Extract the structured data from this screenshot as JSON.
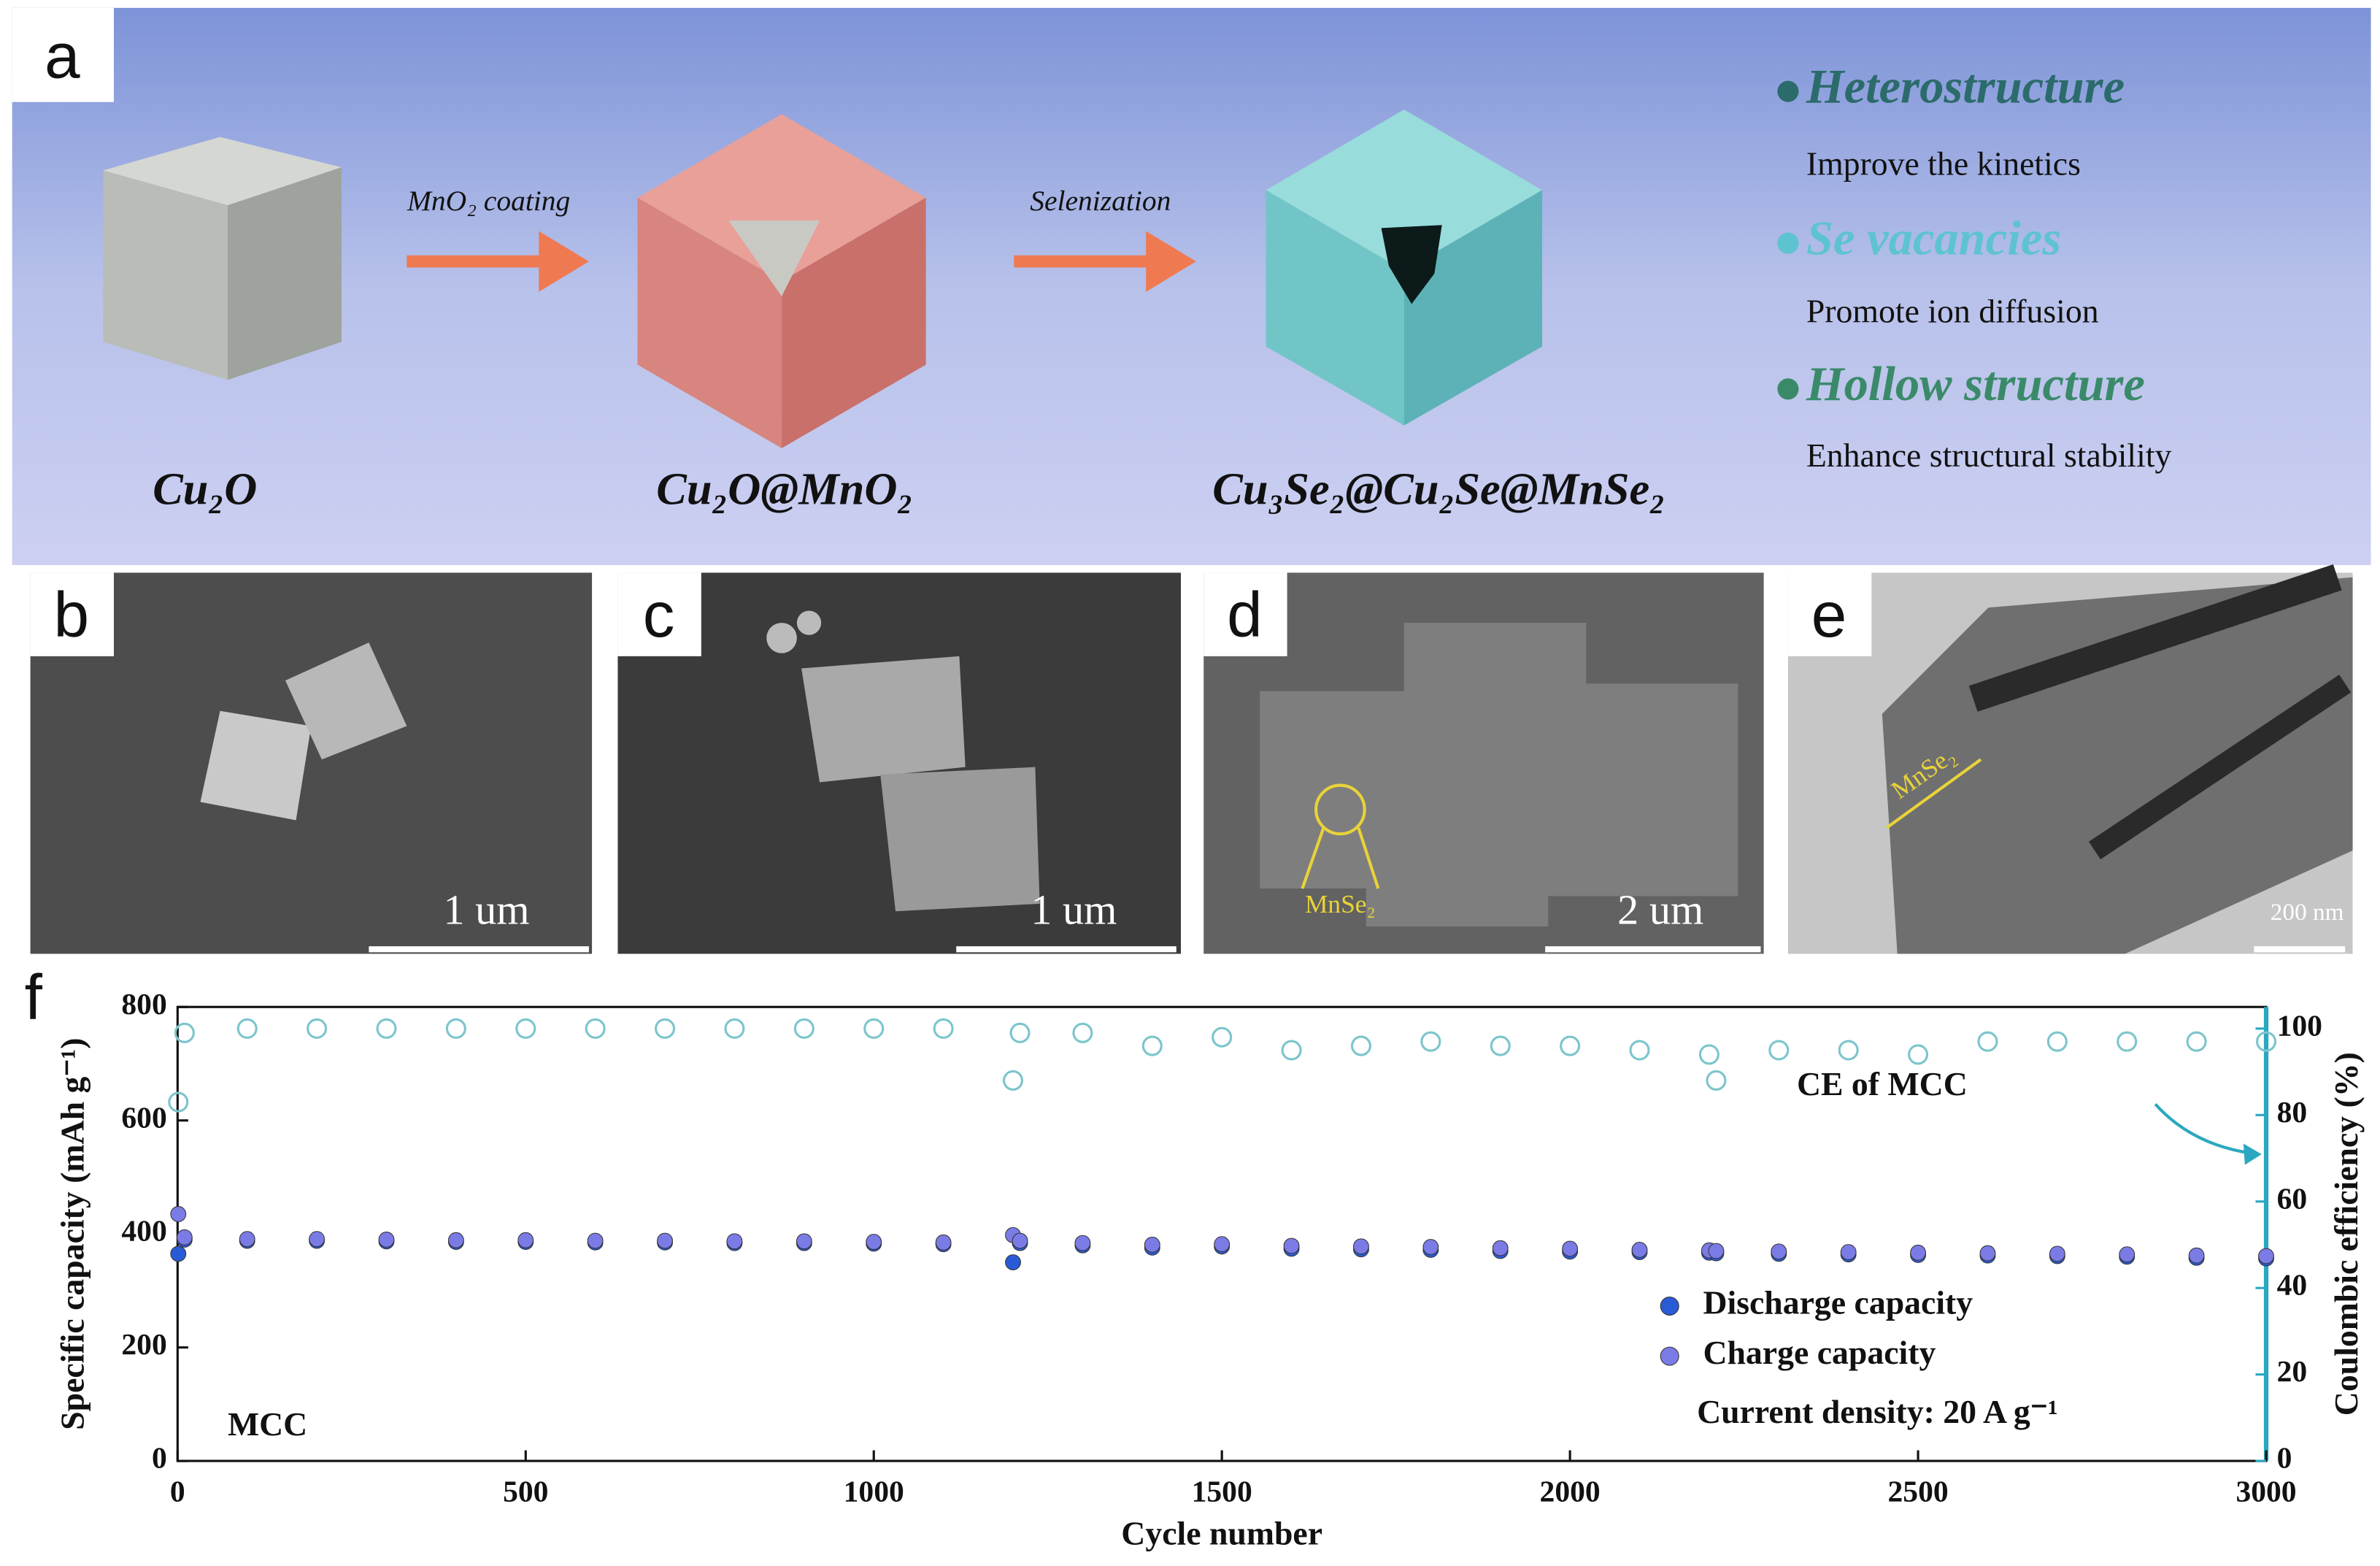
{
  "panel_a": {
    "label": "a",
    "steps": [
      "MnO₂ coating",
      "Selenization"
    ],
    "materials": [
      "Cu₂O",
      "Cu₂O@MnO₂",
      "Cu₃Se₂@Cu₂Se@MnSe₂"
    ],
    "features": [
      {
        "title": "Heterostructure",
        "text": "Improve the kinetics"
      },
      {
        "title": "Se vacancies",
        "text": "Promote ion diffusion"
      },
      {
        "title": "Hollow structure",
        "text": "Enhance structural stability"
      }
    ]
  },
  "panels_micro": [
    {
      "label": "b",
      "scale_bar": "1 um"
    },
    {
      "label": "c",
      "scale_bar": "1 um"
    },
    {
      "label": "d",
      "scale_bar": "2 um",
      "annotation": "MnSe₂"
    },
    {
      "label": "e",
      "scale_bar": "200 nm",
      "annotation": "MnSe₂"
    }
  ],
  "chart_data": {
    "type": "scatter",
    "panel_label": "f",
    "x_label": "Cycle number",
    "y_label": "Specific capacity (mAh g⁻¹)",
    "y2_label": "Coulombic efficiency (%)",
    "x": [
      1,
      10,
      100,
      200,
      300,
      400,
      500,
      600,
      700,
      800,
      900,
      1000,
      1100,
      1200,
      1210,
      1300,
      1400,
      1500,
      1600,
      1700,
      1800,
      1900,
      2000,
      2100,
      2200,
      2210,
      2300,
      2400,
      2500,
      2600,
      2700,
      2800,
      2900,
      3000
    ],
    "series": [
      {
        "name": "Discharge capacity",
        "color": "#2a5bd7",
        "values": [
          365,
          390,
          388,
          388,
          387,
          386,
          386,
          385,
          385,
          384,
          384,
          383,
          382,
          350,
          384,
          380,
          376,
          378,
          374,
          373,
          372,
          370,
          369,
          368,
          367,
          366,
          365,
          364,
          363,
          362,
          361,
          360,
          358,
          357
        ]
      },
      {
        "name": "Charge capacity",
        "color": "#7b7be6",
        "values": [
          435,
          394,
          391,
          391,
          390,
          389,
          389,
          388,
          388,
          387,
          387,
          386,
          385,
          398,
          388,
          384,
          381,
          382,
          379,
          378,
          377,
          375,
          374,
          372,
          371,
          370,
          369,
          368,
          367,
          366,
          365,
          364,
          362,
          361
        ]
      },
      {
        "name": "CE of MCC",
        "color": "#7cc5cc",
        "axis": "y2",
        "values": [
          83,
          99,
          100,
          100,
          100,
          100,
          100,
          100,
          100,
          100,
          100,
          100,
          100,
          88,
          99,
          99,
          96,
          98,
          95,
          96,
          97,
          96,
          96,
          95,
          94,
          88,
          95,
          95,
          94,
          97,
          97,
          97,
          97,
          97
        ]
      }
    ],
    "xlim": [
      0,
      3000
    ],
    "xticks": [
      0,
      500,
      1000,
      1500,
      2000,
      2500,
      3000
    ],
    "ylim": [
      0,
      800
    ],
    "yticks": [
      0,
      200,
      400,
      600,
      800
    ],
    "y2lim": [
      0,
      105
    ],
    "y2ticks": [
      0,
      20,
      40,
      60,
      80,
      100
    ],
    "y2_color": "#2ba8c0",
    "annotations": [
      "MCC",
      "Current density: 20 A g⁻¹"
    ],
    "legend": "lower right"
  }
}
